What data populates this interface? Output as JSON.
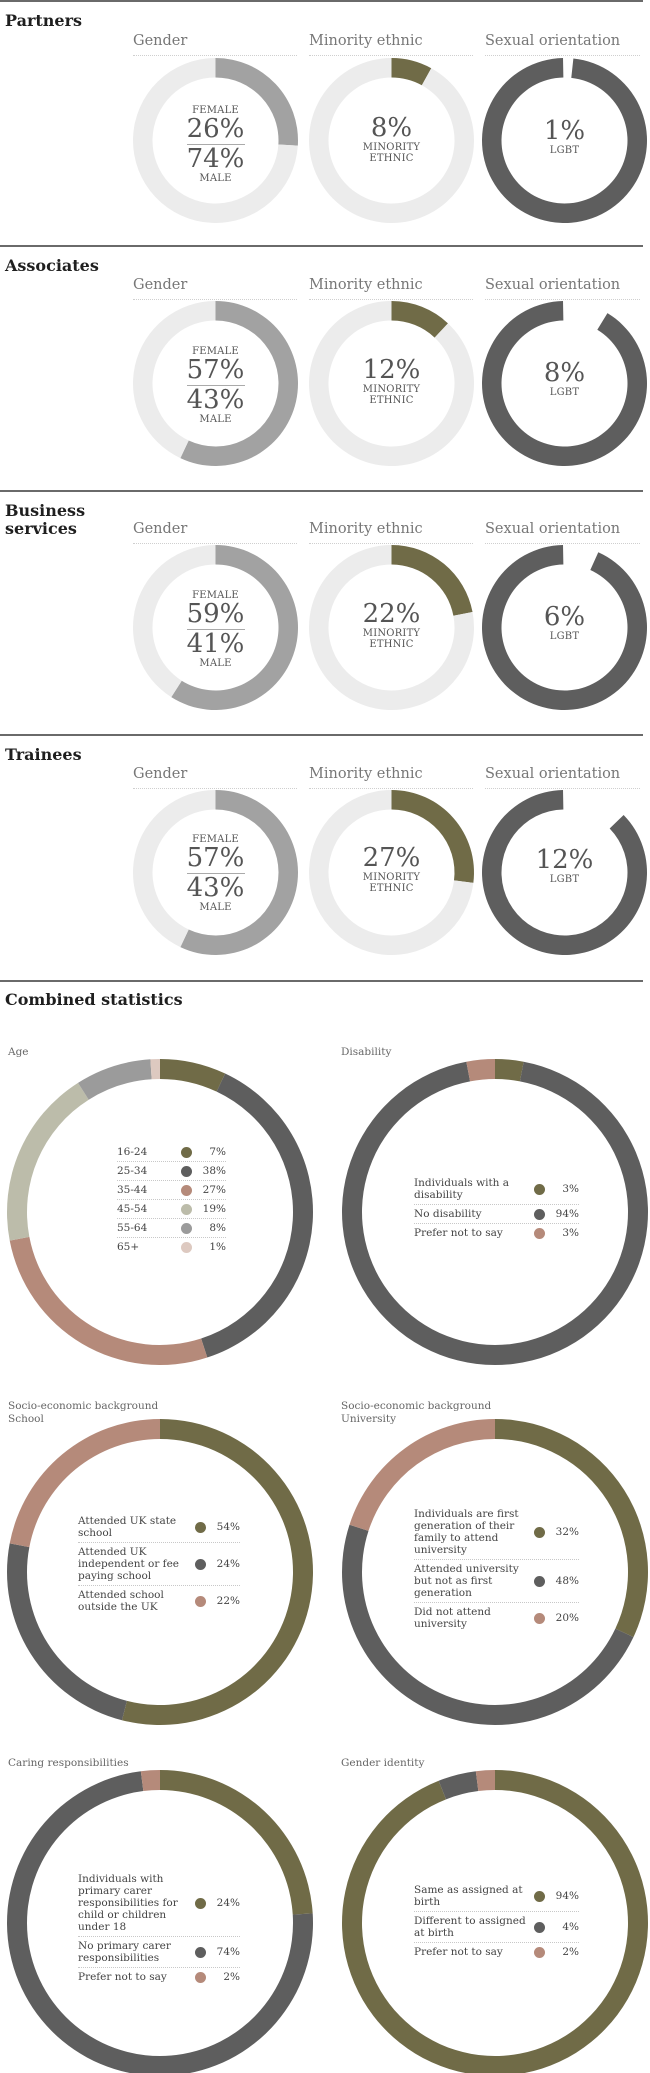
{
  "colors": {
    "olive": "#706b47",
    "dark": "#5e5e5e",
    "light": "#ececec",
    "mid": "#a2a2a2",
    "salmon": "#b58a7a",
    "sage": "#bcbcaa",
    "grey55": "#9b9b9b",
    "pink": "#ddc9c0"
  },
  "columns": {
    "gender": "Gender",
    "minority": "Minority ethnic",
    "orientation": "Sexual orientation"
  },
  "sections": [
    {
      "title": "Partners",
      "gender": {
        "female_label": "FEMALE",
        "female_value": "26%",
        "male_value": "74%",
        "male_label": "MALE"
      },
      "minority": {
        "value": "8%",
        "label_line1": "MINORITY",
        "label_line2": "ETHNIC"
      },
      "orientation": {
        "value": "1%",
        "label": "LGBT"
      }
    },
    {
      "title": "Associates",
      "gender": {
        "female_label": "FEMALE",
        "female_value": "57%",
        "male_value": "43%",
        "male_label": "MALE"
      },
      "minority": {
        "value": "12%",
        "label_line1": "MINORITY",
        "label_line2": "ETHNIC"
      },
      "orientation": {
        "value": "8%",
        "label": "LGBT"
      }
    },
    {
      "title_line1": "Business",
      "title_line2": "services",
      "gender": {
        "female_label": "FEMALE",
        "female_value": "59%",
        "male_value": "41%",
        "male_label": "MALE"
      },
      "minority": {
        "value": "22%",
        "label_line1": "MINORITY",
        "label_line2": "ETHNIC"
      },
      "orientation": {
        "value": "6%",
        "label": "LGBT"
      }
    },
    {
      "title": "Trainees",
      "gender": {
        "female_label": "FEMALE",
        "female_value": "57%",
        "male_value": "43%",
        "male_label": "MALE"
      },
      "minority": {
        "value": "27%",
        "label_line1": "MINORITY",
        "label_line2": "ETHNIC"
      },
      "orientation": {
        "value": "12%",
        "label": "LGBT"
      }
    }
  ],
  "combined": {
    "title": "Combined statistics",
    "age": {
      "heading": "Age",
      "rows": [
        {
          "label": "16-24",
          "value": "7%"
        },
        {
          "label": "25-34",
          "value": "38%"
        },
        {
          "label": "35-44",
          "value": "27%"
        },
        {
          "label": "45-54",
          "value": "19%"
        },
        {
          "label": "55-64",
          "value": "8%"
        },
        {
          "label": "65+",
          "value": "1%"
        }
      ]
    },
    "disability": {
      "heading": "Disability",
      "rows": [
        {
          "label": "Individuals with a disability",
          "value": "3%"
        },
        {
          "label": "No disability",
          "value": "94%"
        },
        {
          "label": "Prefer not to say",
          "value": "3%"
        }
      ]
    },
    "school": {
      "heading_line1": "Socio-economic background",
      "heading_line2": "School",
      "rows": [
        {
          "label": "Attended UK state school",
          "value": "54%"
        },
        {
          "label": "Attended UK independent or fee paying school",
          "value": "24%"
        },
        {
          "label": "Attended school outside the UK",
          "value": "22%"
        }
      ]
    },
    "university": {
      "heading_line1": "Socio-economic background",
      "heading_line2": "University",
      "rows": [
        {
          "label": "Individuals are first generation of their family to attend university",
          "value": "32%"
        },
        {
          "label": "Attended university but not as first generation",
          "value": "48%"
        },
        {
          "label": "Did not attend university",
          "value": "20%"
        }
      ]
    },
    "caring": {
      "heading": "Caring responsibilities",
      "rows": [
        {
          "label": "Individuals with primary carer responsibilities for child or children under 18",
          "value": "24%"
        },
        {
          "label": "No primary carer responsibilities",
          "value": "74%"
        },
        {
          "label": "Prefer not to say",
          "value": "2%"
        }
      ]
    },
    "identity": {
      "heading": "Gender identity",
      "rows": [
        {
          "label": "Same as assigned at birth",
          "value": "94%"
        },
        {
          "label": "Different to assigned at birth",
          "value": "4%"
        },
        {
          "label": "Prefer not to say",
          "value": "2%"
        }
      ]
    }
  },
  "chart_data": [
    {
      "type": "pie",
      "title": "Partners",
      "categories": [
        "Female",
        "Male"
      ],
      "values": [
        26,
        74
      ]
    },
    {
      "type": "pie",
      "title": "Partners",
      "categories": [
        "Minority ethnic",
        "Other"
      ],
      "values": [
        8,
        92
      ]
    },
    {
      "type": "pie",
      "title": "Partners",
      "categories": [
        "LGBT",
        "Other"
      ],
      "values": [
        1,
        99
      ]
    },
    {
      "type": "pie",
      "title": "Associates",
      "categories": [
        "Female",
        "Male"
      ],
      "values": [
        57,
        43
      ]
    },
    {
      "type": "pie",
      "title": "Associates",
      "categories": [
        "Minority ethnic",
        "Other"
      ],
      "values": [
        12,
        88
      ]
    },
    {
      "type": "pie",
      "title": "Associates",
      "categories": [
        "LGBT",
        "Other"
      ],
      "values": [
        8,
        92
      ]
    },
    {
      "type": "pie",
      "title": "Business services",
      "categories": [
        "Female",
        "Male"
      ],
      "values": [
        59,
        41
      ]
    },
    {
      "type": "pie",
      "title": "Business services",
      "categories": [
        "Minority ethnic",
        "Other"
      ],
      "values": [
        22,
        78
      ]
    },
    {
      "type": "pie",
      "title": "Business services",
      "categories": [
        "LGBT",
        "Other"
      ],
      "values": [
        6,
        94
      ]
    },
    {
      "type": "pie",
      "title": "Trainees",
      "categories": [
        "Female",
        "Male"
      ],
      "values": [
        57,
        43
      ]
    },
    {
      "type": "pie",
      "title": "Trainees",
      "categories": [
        "Minority ethnic",
        "Other"
      ],
      "values": [
        27,
        73
      ]
    },
    {
      "type": "pie",
      "title": "Trainees",
      "categories": [
        "LGBT",
        "Other"
      ],
      "values": [
        12,
        88
      ]
    },
    {
      "type": "pie",
      "title": "Age",
      "categories": [
        "16-24",
        "25-34",
        "35-44",
        "45-54",
        "55-64",
        "65+"
      ],
      "values": [
        7,
        38,
        27,
        19,
        8,
        1
      ]
    },
    {
      "type": "pie",
      "title": "Disability",
      "categories": [
        "Individuals with a disability",
        "No disability",
        "Prefer not to say"
      ],
      "values": [
        3,
        94,
        3
      ]
    },
    {
      "type": "pie",
      "title": "School",
      "categories": [
        "Attended UK state school",
        "Attended UK independent or fee paying school",
        "Attended school outside the UK"
      ],
      "values": [
        54,
        24,
        22
      ]
    },
    {
      "type": "pie",
      "title": "University",
      "categories": [
        "Individuals are first generation of their family to attend university",
        "Attended university but not as first generation",
        "Did not attend university"
      ],
      "values": [
        32,
        48,
        20
      ]
    },
    {
      "type": "pie",
      "title": "Caring responsibilities",
      "categories": [
        "Individuals with primary carer responsibilities for child or children under 18",
        "No primary carer responsibilities",
        "Prefer not to say"
      ],
      "values": [
        24,
        74,
        2
      ]
    },
    {
      "type": "pie",
      "title": "Gender identity",
      "categories": [
        "Same as assigned at birth",
        "Different to assigned at birth",
        "Prefer not to say"
      ],
      "values": [
        94,
        4,
        2
      ]
    }
  ]
}
